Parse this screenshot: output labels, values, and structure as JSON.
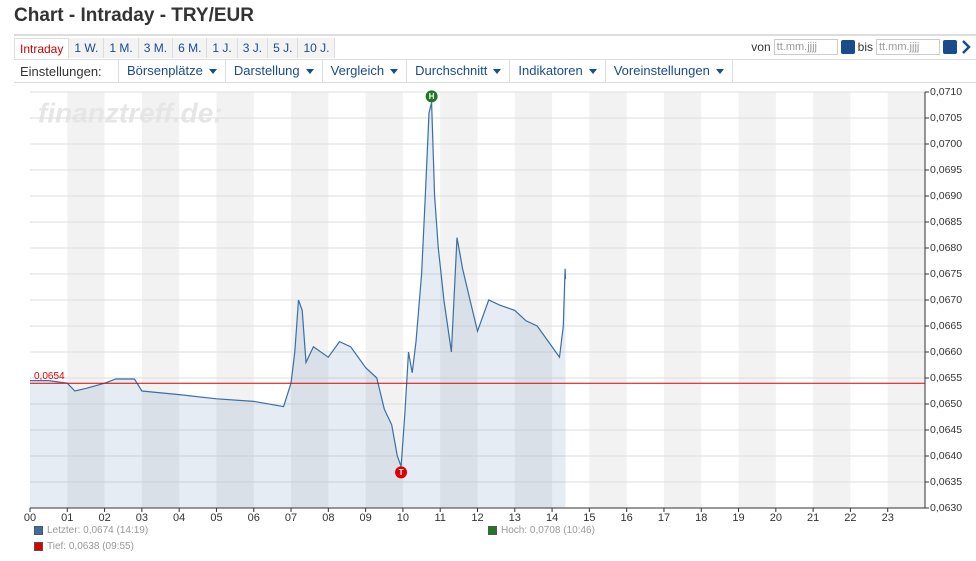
{
  "header": {
    "title": "Chart - Intraday - TRY/EUR"
  },
  "tabs": [
    "Intraday",
    "1 W.",
    "1 M.",
    "3 M.",
    "6 M.",
    "1 J.",
    "3 J.",
    "5 J.",
    "10 J."
  ],
  "date_range": {
    "from_label": "von",
    "placeholder": "tt.mm.jjjj",
    "to_label": "bis"
  },
  "settings": {
    "label": "Einstellungen:",
    "menus": [
      "Börsenplätze",
      "Darstellung",
      "Vergleich",
      "Durchschnitt",
      "Indikatoren",
      "Voreinstellungen"
    ]
  },
  "chart_data": {
    "type": "line",
    "watermark": "finanztreff.de:",
    "xlim": [
      0,
      24
    ],
    "ylim": [
      0.063,
      0.071
    ],
    "xticks": [
      {
        "value": 0,
        "label": "00"
      },
      {
        "value": 1,
        "label": "01"
      },
      {
        "value": 2,
        "label": "02"
      },
      {
        "value": 3,
        "label": "03"
      },
      {
        "value": 4,
        "label": "04"
      },
      {
        "value": 5,
        "label": "05"
      },
      {
        "value": 6,
        "label": "06"
      },
      {
        "value": 7,
        "label": "07"
      },
      {
        "value": 8,
        "label": "08"
      },
      {
        "value": 9,
        "label": "09"
      },
      10,
      11,
      12,
      13,
      14,
      15,
      16,
      17,
      18,
      19,
      20,
      21,
      22,
      23
    ],
    "yticks": [
      {
        "value": 0.063,
        "label": "0,0630"
      },
      {
        "value": 0.0635,
        "label": "0,0635"
      },
      {
        "value": 0.064,
        "label": "0,0640"
      },
      {
        "value": 0.0645,
        "label": "0,0645"
      },
      {
        "value": 0.065,
        "label": "0,0650"
      },
      {
        "value": 0.0655,
        "label": "0,0655"
      },
      {
        "value": 0.066,
        "label": "0,0660"
      },
      {
        "value": 0.0665,
        "label": "0,0665"
      },
      {
        "value": 0.067,
        "label": "0,0670"
      },
      {
        "value": 0.0675,
        "label": "0,0675"
      },
      {
        "value": 0.068,
        "label": "0,0680"
      },
      {
        "value": 0.0685,
        "label": "0,0685"
      },
      {
        "value": 0.069,
        "label": "0,0690"
      },
      {
        "value": 0.0695,
        "label": "0,0695"
      },
      {
        "value": 0.07,
        "label": "0,0700"
      },
      {
        "value": 0.0705,
        "label": "0,0705"
      },
      {
        "value": 0.071,
        "label": "0,0710"
      }
    ],
    "grid": true,
    "reference_line": {
      "value": 0.0654,
      "label": "0,0654",
      "color": "#dd0000"
    },
    "series": [
      {
        "color": "#3a6ea5",
        "x": [
          0,
          0.5,
          1,
          1.2,
          1.5,
          2,
          2.3,
          2.8,
          3,
          4,
          5,
          6,
          6.8,
          7,
          7.1,
          7.2,
          7.3,
          7.4,
          7.6,
          8,
          8.3,
          8.6,
          9,
          9.3,
          9.5,
          9.7,
          9.85,
          9.95,
          10.05,
          10.15,
          10.25,
          10.35,
          10.5,
          10.6,
          10.7,
          10.77,
          10.85,
          10.95,
          11.1,
          11.3,
          11.45,
          11.6,
          11.8,
          12,
          12.3,
          12.6,
          13,
          13.3,
          13.6,
          13.9,
          14.1,
          14.2,
          14.3,
          14.35,
          14.36
        ],
        "values": [
          0.06545,
          0.06545,
          0.0654,
          0.06525,
          0.0653,
          0.0654,
          0.06548,
          0.06548,
          0.06525,
          0.06518,
          0.0651,
          0.06505,
          0.06495,
          0.0654,
          0.066,
          0.067,
          0.0668,
          0.0658,
          0.0661,
          0.0659,
          0.0662,
          0.0661,
          0.0657,
          0.0655,
          0.0649,
          0.0646,
          0.064,
          0.0638,
          0.0648,
          0.066,
          0.0656,
          0.0662,
          0.0675,
          0.069,
          0.0706,
          0.0708,
          0.069,
          0.068,
          0.067,
          0.066,
          0.0682,
          0.0676,
          0.067,
          0.0664,
          0.067,
          0.0669,
          0.0668,
          0.0666,
          0.0665,
          0.0662,
          0.066,
          0.0659,
          0.0665,
          0.0676,
          0.0674
        ]
      }
    ],
    "markers": [
      {
        "label": "H",
        "x": 10.77,
        "value": 0.0708,
        "color": "#1e7a1e"
      },
      {
        "label": "T",
        "x": 9.95,
        "value": 0.0638,
        "color": "#dd0000"
      }
    ],
    "legend": [
      {
        "text": "Letzter: 0,0674 (14:19)",
        "color": "#3a6ea5"
      },
      {
        "text": "Tief: 0,0638 (09:55)",
        "color": "#dd0000"
      },
      {
        "text": "Hoch: 0,0708 (10:46)",
        "color": "#1e7a1e"
      }
    ]
  }
}
